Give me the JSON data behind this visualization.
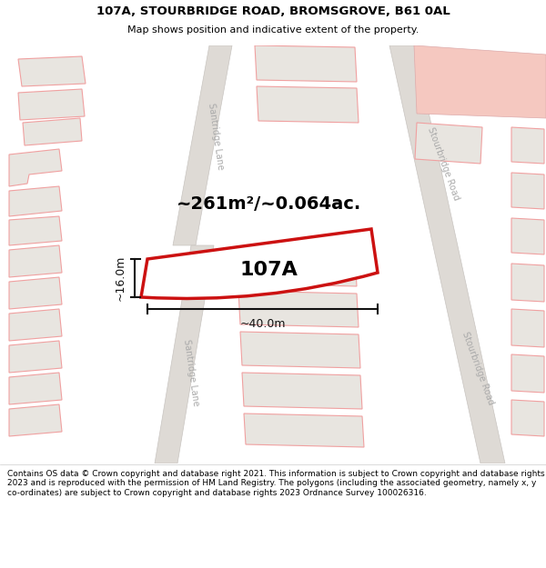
{
  "title": "107A, STOURBRIDGE ROAD, BROMSGROVE, B61 0AL",
  "subtitle": "Map shows position and indicative extent of the property.",
  "footer": "Contains OS data © Crown copyright and database right 2021. This information is subject to Crown copyright and database rights 2023 and is reproduced with the permission of HM Land Registry. The polygons (including the associated geometry, namely x, y co-ordinates) are subject to Crown copyright and database rights 2023 Ordnance Survey 100026316.",
  "map_bg": "#f7f6f4",
  "road_fill": "#dedad5",
  "road_edge": "#c8c4c0",
  "building_fill": "#e8e5e0",
  "building_edge": "#f0a0a0",
  "highlight_area_fill": "#f5c8c0",
  "highlight_area_edge": "#ddaaaa",
  "property_fill": "#ffffff",
  "property_edge": "#cc1111",
  "dim_color": "#111111",
  "text_color": "#111111",
  "road_text_color": "#aaaaaa",
  "property_label": "107A",
  "area_label": "~261m²/~0.064ac.",
  "width_label": "~40.0m",
  "height_label": "~16.0m",
  "title_fontsize": 9.5,
  "subtitle_fontsize": 8,
  "footer_fontsize": 6.5,
  "area_label_fontsize": 14,
  "property_label_fontsize": 16,
  "dim_fontsize": 9,
  "road_label_fontsize": 7
}
